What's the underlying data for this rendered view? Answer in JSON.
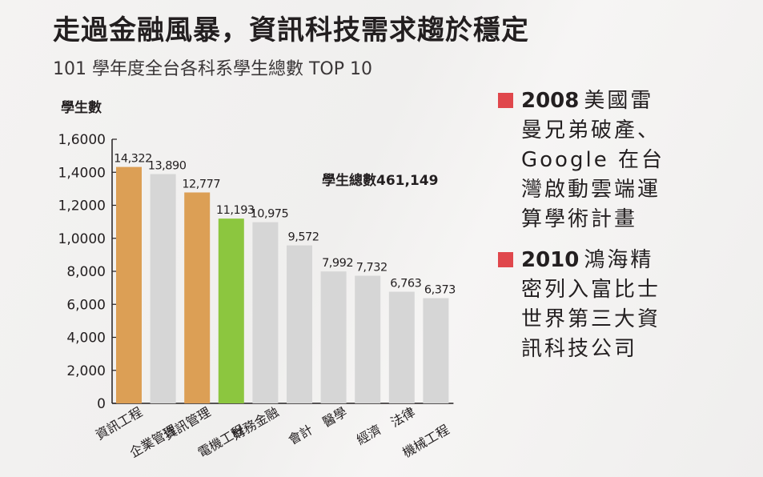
{
  "header": {
    "title": "走過金融風暴，資訊科技需求趨於穩定",
    "subtitle": "101 學年度全台各科系學生總數 TOP 10"
  },
  "chart_data": {
    "type": "bar",
    "title": "101 學年度全台各科系學生總數 TOP 10",
    "ylabel": "學生數",
    "xlabel": "",
    "ylim": [
      0,
      16000
    ],
    "yticks": [
      0,
      2000,
      4000,
      6000,
      8000,
      10000,
      12000,
      14000,
      16000
    ],
    "ytick_labels": [
      "0",
      "2,000",
      "4,000",
      "6,000",
      "8,000",
      "1,0000",
      "1,2000",
      "1,4000",
      "1,6000"
    ],
    "categories": [
      "資訊工程",
      "企業管理",
      "資訊管理",
      "電機工程",
      "財務金融",
      "會計",
      "醫學",
      "經濟",
      "法律",
      "機械工程"
    ],
    "values": [
      14322,
      13890,
      12777,
      11193,
      10975,
      9572,
      7992,
      7732,
      6763,
      6373
    ],
    "value_labels": [
      "14,322",
      "13,890",
      "12,777",
      "11,193",
      "10,975",
      "9,572",
      "7,992",
      "7,732",
      "6,763",
      "6,373"
    ],
    "bar_colors": [
      "#dc9f55",
      "#d6d6d6",
      "#dc9f55",
      "#8cc63f",
      "#d6d6d6",
      "#d6d6d6",
      "#d6d6d6",
      "#d6d6d6",
      "#d6d6d6",
      "#d6d6d6"
    ],
    "annotation": "學生總數461,149",
    "grid": false
  },
  "notes": [
    {
      "year": "2008",
      "text": "美國雷曼兄弟破產、Google 在台灣啟動雲端運算學術計畫"
    },
    {
      "year": "2010",
      "text": "鴻海精密列入富比士世界第三大資訊科技公司"
    }
  ],
  "colors": {
    "highlight_orange": "#dc9f55",
    "highlight_green": "#8cc63f",
    "bar_gray": "#d6d6d6",
    "marker_red": "#e0474c"
  }
}
